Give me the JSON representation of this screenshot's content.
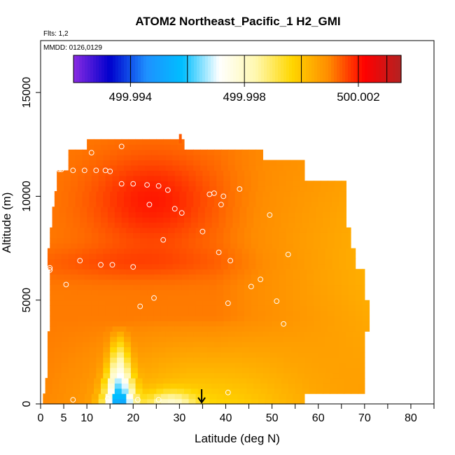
{
  "chart_data": {
    "type": "heatmap",
    "title": "ATOM2 Northeast_Pacific_1 H2_GMI",
    "flights_label": "Flts: 1,2",
    "dates_label": "MMDD: 0126,0129",
    "xlabel": "Latitude (deg N)",
    "ylabel": "Altitude (m)",
    "xlim": [
      0,
      85
    ],
    "ylim": [
      0,
      17500
    ],
    "x_ticks": [
      0,
      5,
      10,
      20,
      30,
      40,
      50,
      60,
      70,
      80
    ],
    "x_minor_ticks": [
      15,
      25,
      35,
      45,
      55,
      65,
      75,
      85
    ],
    "y_ticks": [
      0,
      5000,
      10000,
      15000
    ],
    "grid": false,
    "colorbar": {
      "min": 499.992,
      "max": 500.0035,
      "tick_values": [
        499.994,
        499.998,
        500.002
      ],
      "tick_labels": [
        "499.994",
        "499.998",
        "500.002"
      ],
      "divisions": [
        499.992,
        499.994,
        499.996,
        499.998,
        500.0,
        500.002,
        500.003
      ],
      "colors": [
        "#8a2be2",
        "#0000cd",
        "#1e90ff",
        "#00bfff",
        "#ffffff",
        "#fff8b0",
        "#ffd700",
        "#ff8c00",
        "#ff0000",
        "#b22222"
      ]
    },
    "arrow_latitude": 34.8,
    "observations": [
      {
        "lat": 7,
        "alt": 200
      },
      {
        "lat": 14.5,
        "alt": 250
      },
      {
        "lat": 21,
        "alt": 200
      },
      {
        "lat": 25.5,
        "alt": 200
      },
      {
        "lat": 40.5,
        "alt": 550
      },
      {
        "lat": 21.5,
        "alt": 4700
      },
      {
        "lat": 24.5,
        "alt": 5100
      },
      {
        "lat": 40.5,
        "alt": 4850
      },
      {
        "lat": 51,
        "alt": 4950
      },
      {
        "lat": 52.5,
        "alt": 3850
      },
      {
        "lat": 5.5,
        "alt": 5750
      },
      {
        "lat": 2,
        "alt": 6450
      },
      {
        "lat": 2,
        "alt": 6550
      },
      {
        "lat": 8.5,
        "alt": 6900
      },
      {
        "lat": 13,
        "alt": 6700
      },
      {
        "lat": 15.5,
        "alt": 6700
      },
      {
        "lat": 20,
        "alt": 6600
      },
      {
        "lat": 45.5,
        "alt": 5650
      },
      {
        "lat": 47.5,
        "alt": 6000
      },
      {
        "lat": 41,
        "alt": 6900
      },
      {
        "lat": 38.5,
        "alt": 7300
      },
      {
        "lat": 53.5,
        "alt": 7200
      },
      {
        "lat": 26.5,
        "alt": 7900
      },
      {
        "lat": 35,
        "alt": 8300
      },
      {
        "lat": 30.5,
        "alt": 9200
      },
      {
        "lat": 29,
        "alt": 9400
      },
      {
        "lat": 23.5,
        "alt": 9600
      },
      {
        "lat": 39,
        "alt": 9600
      },
      {
        "lat": 49.5,
        "alt": 9100
      },
      {
        "lat": 27.5,
        "alt": 10300
      },
      {
        "lat": 36.5,
        "alt": 10100
      },
      {
        "lat": 37.5,
        "alt": 10150
      },
      {
        "lat": 39.5,
        "alt": 10000
      },
      {
        "lat": 43,
        "alt": 10350
      },
      {
        "lat": 17.5,
        "alt": 10600
      },
      {
        "lat": 20,
        "alt": 10600
      },
      {
        "lat": 23,
        "alt": 10550
      },
      {
        "lat": 25.5,
        "alt": 10500
      },
      {
        "lat": 4,
        "alt": 11300
      },
      {
        "lat": 4.5,
        "alt": 11300
      },
      {
        "lat": 7,
        "alt": 11250
      },
      {
        "lat": 9.5,
        "alt": 11250
      },
      {
        "lat": 12,
        "alt": 11250
      },
      {
        "lat": 14,
        "alt": 11250
      },
      {
        "lat": 15,
        "alt": 11200
      },
      {
        "lat": 11,
        "alt": 12100
      },
      {
        "lat": 17.5,
        "alt": 12400
      }
    ]
  }
}
